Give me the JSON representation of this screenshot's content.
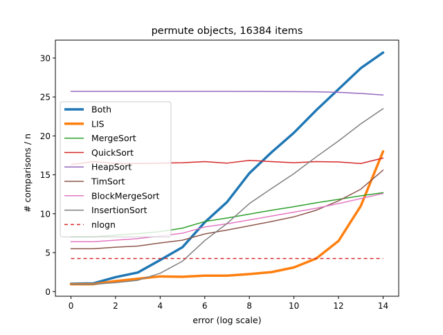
{
  "chart_data": {
    "type": "line",
    "title": "permute objects, 16384 items",
    "xlabel": "error (log scale)",
    "ylabel": "# comparisons / n",
    "xlim": [
      -0.7,
      14.7
    ],
    "ylim": [
      -0.6,
      32.3
    ],
    "xticks": [
      0,
      2,
      4,
      6,
      8,
      10,
      12,
      14
    ],
    "yticks": [
      0,
      5,
      10,
      15,
      20,
      25,
      30
    ],
    "grid": false,
    "legend_position": "center-left",
    "x": [
      0,
      1,
      2,
      3,
      4,
      5,
      6,
      7,
      8,
      9,
      10,
      11,
      12,
      13,
      14
    ],
    "series": [
      {
        "name": "Both",
        "color": "#1f77b4",
        "width": 3.5,
        "dash": "",
        "values": [
          1.0,
          1.05,
          1.85,
          2.45,
          4.05,
          5.7,
          8.9,
          11.5,
          15.2,
          17.9,
          20.4,
          23.3,
          26.0,
          28.7,
          30.7
        ]
      },
      {
        "name": "LIS",
        "color": "#ff7f0e",
        "width": 3.5,
        "dash": "",
        "values": [
          0.95,
          0.95,
          1.35,
          1.65,
          1.95,
          1.9,
          2.05,
          2.05,
          2.25,
          2.5,
          3.1,
          4.25,
          6.5,
          11.0,
          18.0
        ]
      },
      {
        "name": "MergeSort",
        "color": "#2ca02c",
        "width": 1.5,
        "dash": "",
        "values": [
          7.05,
          7.05,
          7.25,
          7.45,
          7.7,
          8.15,
          9.0,
          9.45,
          9.95,
          10.45,
          10.9,
          11.4,
          11.85,
          12.3,
          12.7
        ]
      },
      {
        "name": "QuickSort",
        "color": "#d62728",
        "width": 1.5,
        "dash": "",
        "values": [
          16.3,
          16.7,
          16.45,
          16.45,
          16.5,
          16.55,
          16.7,
          16.5,
          16.85,
          16.7,
          16.55,
          16.7,
          16.65,
          16.45,
          17.15
        ]
      },
      {
        "name": "HeapSort",
        "color": "#9467bd",
        "width": 1.5,
        "dash": "",
        "values": [
          25.72,
          25.72,
          25.72,
          25.72,
          25.72,
          25.72,
          25.72,
          25.72,
          25.71,
          25.7,
          25.69,
          25.66,
          25.6,
          25.45,
          25.25
        ]
      },
      {
        "name": "TimSort",
        "color": "#8c564b",
        "width": 1.5,
        "dash": "",
        "values": [
          5.5,
          5.5,
          5.7,
          5.85,
          6.25,
          6.6,
          7.4,
          7.9,
          8.45,
          9.0,
          9.6,
          10.45,
          11.65,
          13.15,
          15.6
        ]
      },
      {
        "name": "BlockMergeSort",
        "color": "#e377c2",
        "width": 1.5,
        "dash": "",
        "values": [
          6.4,
          6.4,
          6.6,
          6.8,
          7.15,
          7.5,
          8.3,
          8.7,
          9.2,
          9.7,
          10.2,
          10.7,
          11.3,
          11.95,
          12.6
        ]
      },
      {
        "name": "InsertionSort",
        "color": "#7f7f7f",
        "width": 1.5,
        "dash": "",
        "values": [
          0.95,
          0.95,
          1.15,
          1.45,
          2.35,
          3.9,
          6.55,
          8.75,
          11.3,
          13.25,
          15.15,
          17.3,
          19.35,
          21.55,
          23.5
        ]
      },
      {
        "name": "nlogn",
        "color": "#d62728",
        "width": 1.5,
        "dash": "5,4",
        "values": [
          4.25,
          4.25,
          4.25,
          4.25,
          4.25,
          4.25,
          4.25,
          4.25,
          4.25,
          4.25,
          4.25,
          4.25,
          4.25,
          4.25,
          4.25
        ]
      }
    ]
  }
}
